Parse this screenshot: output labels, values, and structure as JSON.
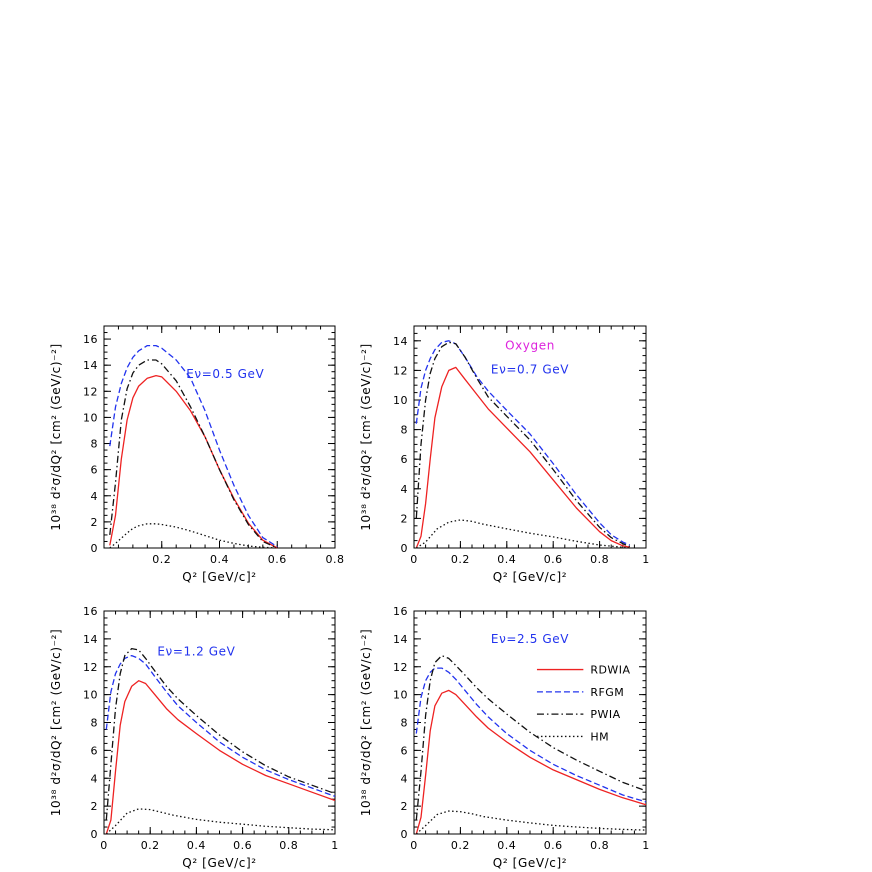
{
  "chart_data": [
    {
      "type": "line",
      "xlabel": "Q² [GeV/c]²",
      "ylabel": "10³⁸ d²σ/dQ² [cm² (GeV/c)⁻²]",
      "xlim": [
        0,
        0.8
      ],
      "ylim": [
        0,
        17
      ],
      "xticks": [
        0.2,
        0.4,
        0.6,
        0.8
      ],
      "xtick_labels": [
        "0.2",
        "0.4",
        "0.6",
        "0.8"
      ],
      "yticks": [
        0,
        2,
        4,
        6,
        8,
        10,
        12,
        14,
        16
      ],
      "ytick_labels": [
        "0",
        "2",
        "4",
        "6",
        "8",
        "10",
        "12",
        "14",
        "16"
      ],
      "annotations": [
        {
          "text": "Eν=0.5 GeV",
          "x": 0.42,
          "y": 13.0,
          "color": "#2233ee"
        }
      ],
      "series": [
        {
          "name": "RDWIA",
          "color": "#ee2222",
          "dash": "solid",
          "x": [
            0.02,
            0.04,
            0.06,
            0.08,
            0.1,
            0.12,
            0.15,
            0.18,
            0.2,
            0.25,
            0.3,
            0.35,
            0.4,
            0.45,
            0.5,
            0.55,
            0.6
          ],
          "y": [
            0.2,
            2.5,
            6.8,
            9.8,
            11.5,
            12.4,
            13.0,
            13.2,
            13.1,
            12.0,
            10.5,
            8.5,
            6.0,
            3.8,
            1.9,
            0.6,
            0.0
          ]
        },
        {
          "name": "RFGM",
          "color": "#2233ee",
          "dash": "dashed",
          "x": [
            0.02,
            0.04,
            0.06,
            0.08,
            0.1,
            0.12,
            0.15,
            0.18,
            0.2,
            0.25,
            0.3,
            0.35,
            0.4,
            0.45,
            0.5,
            0.55,
            0.6
          ],
          "y": [
            7.8,
            10.8,
            12.6,
            13.8,
            14.6,
            15.1,
            15.5,
            15.5,
            15.3,
            14.4,
            13.0,
            10.5,
            7.5,
            4.8,
            2.5,
            0.8,
            0.1
          ]
        },
        {
          "name": "PWIA",
          "color": "#111111",
          "dash": "dashdot",
          "x": [
            0.02,
            0.04,
            0.06,
            0.08,
            0.1,
            0.12,
            0.15,
            0.18,
            0.2,
            0.25,
            0.3,
            0.35,
            0.4,
            0.45,
            0.5,
            0.55,
            0.6
          ],
          "y": [
            1.0,
            5.0,
            9.8,
            12.2,
            13.4,
            14.0,
            14.4,
            14.4,
            14.1,
            12.8,
            10.8,
            8.5,
            6.0,
            3.7,
            1.8,
            0.5,
            0.0
          ]
        },
        {
          "name": "HM",
          "color": "#111111",
          "dash": "dotted",
          "x": [
            0.02,
            0.04,
            0.06,
            0.08,
            0.1,
            0.12,
            0.15,
            0.18,
            0.2,
            0.25,
            0.3,
            0.35,
            0.4,
            0.45,
            0.5,
            0.55,
            0.6
          ],
          "y": [
            0.0,
            0.35,
            0.75,
            1.15,
            1.5,
            1.7,
            1.85,
            1.85,
            1.8,
            1.6,
            1.3,
            0.95,
            0.6,
            0.35,
            0.15,
            0.05,
            0.0
          ]
        }
      ]
    },
    {
      "type": "line",
      "xlabel": "Q² [GeV/c]²",
      "ylabel": "10³⁸ d²σ/dQ² [cm² (GeV/c)⁻²]",
      "xlim": [
        0,
        1
      ],
      "ylim": [
        0,
        15
      ],
      "xticks": [
        0,
        0.2,
        0.4,
        0.6,
        0.8,
        1
      ],
      "xtick_labels": [
        "0",
        "0.2",
        "0.4",
        "0.6",
        "0.8",
        "1"
      ],
      "yticks": [
        0,
        2,
        4,
        6,
        8,
        10,
        12,
        14
      ],
      "ytick_labels": [
        "0",
        "2",
        "4",
        "6",
        "8",
        "10",
        "12",
        "14"
      ],
      "annotations": [
        {
          "text": "Oxygen",
          "x": 0.5,
          "y": 13.4,
          "color": "#dd22dd"
        },
        {
          "text": "Eν=0.7 GeV",
          "x": 0.5,
          "y": 11.8,
          "color": "#2233ee"
        }
      ],
      "series": [
        {
          "name": "RDWIA",
          "color": "#ee2222",
          "dash": "solid",
          "x": [
            0.01,
            0.03,
            0.05,
            0.07,
            0.09,
            0.12,
            0.15,
            0.18,
            0.22,
            0.27,
            0.32,
            0.4,
            0.5,
            0.6,
            0.7,
            0.8,
            0.85,
            0.9,
            0.93
          ],
          "y": [
            0.0,
            0.8,
            3.0,
            6.0,
            8.8,
            10.9,
            12.0,
            12.2,
            11.4,
            10.4,
            9.4,
            8.1,
            6.5,
            4.6,
            2.7,
            1.1,
            0.5,
            0.15,
            0.05
          ]
        },
        {
          "name": "RFGM",
          "color": "#2233ee",
          "dash": "dashed",
          "x": [
            0.01,
            0.03,
            0.05,
            0.07,
            0.09,
            0.12,
            0.15,
            0.18,
            0.22,
            0.27,
            0.32,
            0.4,
            0.5,
            0.6,
            0.7,
            0.8,
            0.85,
            0.9,
            0.93
          ],
          "y": [
            8.4,
            10.8,
            12.0,
            12.8,
            13.4,
            13.9,
            14.0,
            13.8,
            12.9,
            11.6,
            10.6,
            9.3,
            7.7,
            5.7,
            3.6,
            1.7,
            0.9,
            0.4,
            0.2
          ]
        },
        {
          "name": "PWIA",
          "color": "#111111",
          "dash": "dashdot",
          "x": [
            0.01,
            0.03,
            0.05,
            0.07,
            0.09,
            0.12,
            0.15,
            0.18,
            0.22,
            0.27,
            0.32,
            0.4,
            0.5,
            0.6,
            0.7,
            0.8,
            0.85,
            0.9,
            0.93
          ],
          "y": [
            2.0,
            7.0,
            10.0,
            11.8,
            12.8,
            13.6,
            13.9,
            13.8,
            12.9,
            11.5,
            10.2,
            8.9,
            7.3,
            5.3,
            3.2,
            1.4,
            0.7,
            0.3,
            0.1
          ]
        },
        {
          "name": "HM",
          "color": "#111111",
          "dash": "dotted",
          "x": [
            0.01,
            0.05,
            0.1,
            0.15,
            0.2,
            0.25,
            0.3,
            0.4,
            0.5,
            0.6,
            0.7,
            0.8,
            0.9,
            0.93
          ],
          "y": [
            0.0,
            0.4,
            1.3,
            1.75,
            1.9,
            1.8,
            1.6,
            1.3,
            1.0,
            0.75,
            0.45,
            0.2,
            0.05,
            0.0
          ]
        }
      ]
    },
    {
      "type": "line",
      "xlabel": "Q² [GeV/c]²",
      "ylabel": "10³⁸ d²σ/dQ² [cm² (GeV/c)⁻²]",
      "xlim": [
        0,
        1
      ],
      "ylim": [
        0,
        16
      ],
      "xticks": [
        0,
        0.2,
        0.4,
        0.6,
        0.8,
        1
      ],
      "xtick_labels": [
        "0",
        "0.2",
        "0.4",
        "0.6",
        "0.8",
        "1"
      ],
      "yticks": [
        0,
        2,
        4,
        6,
        8,
        10,
        12,
        14,
        16
      ],
      "ytick_labels": [
        "0",
        "2",
        "4",
        "6",
        "8",
        "10",
        "12",
        "14",
        "16"
      ],
      "annotations": [
        {
          "text": "Eν=1.2 GeV",
          "x": 0.4,
          "y": 12.8,
          "color": "#2233ee"
        }
      ],
      "series": [
        {
          "name": "RDWIA",
          "color": "#ee2222",
          "dash": "solid",
          "x": [
            0.01,
            0.03,
            0.05,
            0.07,
            0.09,
            0.12,
            0.15,
            0.18,
            0.22,
            0.27,
            0.32,
            0.4,
            0.5,
            0.6,
            0.7,
            0.8,
            0.9,
            1.0
          ],
          "y": [
            0.0,
            1.0,
            4.5,
            7.8,
            9.5,
            10.6,
            11.0,
            10.8,
            10.0,
            9.0,
            8.2,
            7.2,
            6.0,
            5.0,
            4.2,
            3.6,
            3.0,
            2.4
          ]
        },
        {
          "name": "RFGM",
          "color": "#2233ee",
          "dash": "dashed",
          "x": [
            0.01,
            0.03,
            0.05,
            0.07,
            0.09,
            0.12,
            0.15,
            0.18,
            0.22,
            0.27,
            0.32,
            0.4,
            0.5,
            0.6,
            0.7,
            0.8,
            0.9,
            1.0
          ],
          "y": [
            7.5,
            10.2,
            11.5,
            12.2,
            12.6,
            12.8,
            12.6,
            12.2,
            11.3,
            10.2,
            9.2,
            8.0,
            6.6,
            5.5,
            4.6,
            3.9,
            3.3,
            2.7
          ]
        },
        {
          "name": "PWIA",
          "color": "#111111",
          "dash": "dashdot",
          "x": [
            0.01,
            0.03,
            0.05,
            0.07,
            0.09,
            0.12,
            0.15,
            0.18,
            0.22,
            0.27,
            0.32,
            0.4,
            0.5,
            0.6,
            0.7,
            0.8,
            0.9,
            1.0
          ],
          "y": [
            1.0,
            5.0,
            9.0,
            11.5,
            12.8,
            13.3,
            13.2,
            12.6,
            11.7,
            10.6,
            9.7,
            8.5,
            7.1,
            5.9,
            4.9,
            4.1,
            3.5,
            2.9
          ]
        },
        {
          "name": "HM",
          "color": "#111111",
          "dash": "dotted",
          "x": [
            0.01,
            0.05,
            0.1,
            0.15,
            0.2,
            0.25,
            0.3,
            0.4,
            0.5,
            0.6,
            0.7,
            0.8,
            0.9,
            1.0
          ],
          "y": [
            0.0,
            0.6,
            1.5,
            1.8,
            1.75,
            1.55,
            1.35,
            1.05,
            0.85,
            0.7,
            0.55,
            0.45,
            0.35,
            0.3
          ]
        }
      ]
    },
    {
      "type": "line",
      "xlabel": "Q² [GeV/c]²",
      "ylabel": "10³⁸ d²σ/dQ² [cm² (GeV/c)⁻²]",
      "xlim": [
        0,
        1
      ],
      "ylim": [
        0,
        16
      ],
      "xticks": [
        0,
        0.2,
        0.4,
        0.6,
        0.8,
        1
      ],
      "xtick_labels": [
        "0",
        "0.2",
        "0.4",
        "0.6",
        "0.8",
        "1"
      ],
      "yticks": [
        0,
        2,
        4,
        6,
        8,
        10,
        12,
        14,
        16
      ],
      "ytick_labels": [
        "0",
        "2",
        "4",
        "6",
        "8",
        "10",
        "12",
        "14",
        "16"
      ],
      "annotations": [
        {
          "text": "Eν=2.5 GeV",
          "x": 0.5,
          "y": 13.7,
          "color": "#2233ee"
        }
      ],
      "legend": {
        "placement": "right",
        "entries": [
          {
            "label": "RDWIA",
            "color": "#ee2222",
            "dash": "solid"
          },
          {
            "label": "RFGM",
            "color": "#2233ee",
            "dash": "dashed"
          },
          {
            "label": "PWIA",
            "color": "#111111",
            "dash": "dashdot"
          },
          {
            "label": "HM",
            "color": "#111111",
            "dash": "dotted"
          }
        ]
      },
      "series": [
        {
          "name": "RDWIA",
          "color": "#ee2222",
          "dash": "solid",
          "x": [
            0.01,
            0.03,
            0.05,
            0.07,
            0.09,
            0.12,
            0.15,
            0.18,
            0.22,
            0.27,
            0.32,
            0.4,
            0.5,
            0.6,
            0.7,
            0.8,
            0.9,
            1.0
          ],
          "y": [
            0.0,
            1.2,
            4.2,
            7.4,
            9.2,
            10.1,
            10.3,
            10.0,
            9.3,
            8.4,
            7.6,
            6.6,
            5.5,
            4.6,
            3.9,
            3.2,
            2.6,
            2.1
          ]
        },
        {
          "name": "RFGM",
          "color": "#2233ee",
          "dash": "dashed",
          "x": [
            0.01,
            0.03,
            0.05,
            0.07,
            0.09,
            0.12,
            0.15,
            0.18,
            0.22,
            0.27,
            0.32,
            0.4,
            0.5,
            0.6,
            0.7,
            0.8,
            0.9,
            1.0
          ],
          "y": [
            7.2,
            9.8,
            11.0,
            11.6,
            11.9,
            11.9,
            11.6,
            11.1,
            10.3,
            9.3,
            8.4,
            7.2,
            6.0,
            5.0,
            4.2,
            3.5,
            2.8,
            2.3
          ]
        },
        {
          "name": "PWIA",
          "color": "#111111",
          "dash": "dashdot",
          "x": [
            0.01,
            0.03,
            0.05,
            0.07,
            0.09,
            0.12,
            0.15,
            0.18,
            0.22,
            0.27,
            0.32,
            0.4,
            0.5,
            0.6,
            0.7,
            0.8,
            0.9,
            1.0
          ],
          "y": [
            1.0,
            4.5,
            8.5,
            11.0,
            12.3,
            12.8,
            12.6,
            12.1,
            11.4,
            10.5,
            9.7,
            8.6,
            7.3,
            6.2,
            5.3,
            4.5,
            3.7,
            3.1
          ]
        },
        {
          "name": "HM",
          "color": "#111111",
          "dash": "dotted",
          "x": [
            0.01,
            0.05,
            0.1,
            0.15,
            0.2,
            0.25,
            0.3,
            0.4,
            0.5,
            0.6,
            0.7,
            0.8,
            0.9,
            1.0
          ],
          "y": [
            0.0,
            0.6,
            1.4,
            1.65,
            1.6,
            1.45,
            1.25,
            1.0,
            0.8,
            0.62,
            0.5,
            0.4,
            0.33,
            0.28
          ]
        }
      ]
    }
  ]
}
